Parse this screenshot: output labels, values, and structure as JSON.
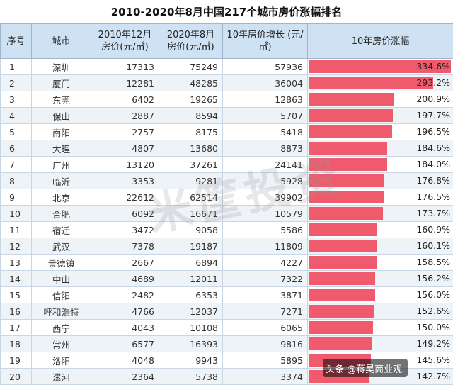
{
  "title": "2010-2020年8月中国217个城市房价涨幅排名",
  "headers": {
    "rank": "序号",
    "city": "城市",
    "price2010": "2010年12月 房价(元/㎡)",
    "price2020": "2020年8月 房价(元/㎡)",
    "growth": "10年房价增长 (元/㎡)",
    "rise": "10年房价涨幅"
  },
  "rows": [
    {
      "rank": "1",
      "city": "深圳",
      "p2010": "17313",
      "p2020": "75249",
      "growth": "57936",
      "rise": "334.6%",
      "rise_value": 334.6
    },
    {
      "rank": "2",
      "city": "厦门",
      "p2010": "12281",
      "p2020": "48285",
      "growth": "36004",
      "rise": "293.2%",
      "rise_value": 293.2
    },
    {
      "rank": "3",
      "city": "东莞",
      "p2010": "6402",
      "p2020": "19265",
      "growth": "12863",
      "rise": "200.9%",
      "rise_value": 200.9
    },
    {
      "rank": "4",
      "city": "保山",
      "p2010": "2887",
      "p2020": "8594",
      "growth": "5707",
      "rise": "197.7%",
      "rise_value": 197.7
    },
    {
      "rank": "5",
      "city": "南阳",
      "p2010": "2757",
      "p2020": "8175",
      "growth": "5418",
      "rise": "196.5%",
      "rise_value": 196.5
    },
    {
      "rank": "6",
      "city": "大理",
      "p2010": "4807",
      "p2020": "13680",
      "growth": "8873",
      "rise": "184.6%",
      "rise_value": 184.6
    },
    {
      "rank": "7",
      "city": "广州",
      "p2010": "13120",
      "p2020": "37261",
      "growth": "24141",
      "rise": "184.0%",
      "rise_value": 184.0
    },
    {
      "rank": "8",
      "city": "临沂",
      "p2010": "3353",
      "p2020": "9281",
      "growth": "5928",
      "rise": "176.8%",
      "rise_value": 176.8
    },
    {
      "rank": "9",
      "city": "北京",
      "p2010": "22612",
      "p2020": "62514",
      "growth": "39902",
      "rise": "176.5%",
      "rise_value": 176.5
    },
    {
      "rank": "10",
      "city": "合肥",
      "p2010": "6092",
      "p2020": "16671",
      "growth": "10579",
      "rise": "173.7%",
      "rise_value": 173.7
    },
    {
      "rank": "11",
      "city": "宿迁",
      "p2010": "3472",
      "p2020": "9058",
      "growth": "5586",
      "rise": "160.9%",
      "rise_value": 160.9
    },
    {
      "rank": "12",
      "city": "武汉",
      "p2010": "7378",
      "p2020": "19187",
      "growth": "11809",
      "rise": "160.1%",
      "rise_value": 160.1
    },
    {
      "rank": "13",
      "city": "景德镇",
      "p2010": "2667",
      "p2020": "6894",
      "growth": "4227",
      "rise": "158.5%",
      "rise_value": 158.5
    },
    {
      "rank": "14",
      "city": "中山",
      "p2010": "4689",
      "p2020": "12011",
      "growth": "7322",
      "rise": "156.2%",
      "rise_value": 156.2
    },
    {
      "rank": "15",
      "city": "信阳",
      "p2010": "2482",
      "p2020": "6353",
      "growth": "3871",
      "rise": "156.0%",
      "rise_value": 156.0
    },
    {
      "rank": "16",
      "city": "呼和浩特",
      "p2010": "4766",
      "p2020": "12037",
      "growth": "7271",
      "rise": "152.6%",
      "rise_value": 152.6
    },
    {
      "rank": "17",
      "city": "西宁",
      "p2010": "4043",
      "p2020": "10108",
      "growth": "6065",
      "rise": "150.0%",
      "rise_value": 150.0
    },
    {
      "rank": "18",
      "city": "常州",
      "p2010": "6577",
      "p2020": "16393",
      "growth": "9816",
      "rise": "149.2%",
      "rise_value": 149.2
    },
    {
      "rank": "19",
      "city": "洛阳",
      "p2010": "4048",
      "p2020": "9943",
      "growth": "5895",
      "rise": "145.6%",
      "rise_value": 145.6
    },
    {
      "rank": "20",
      "city": "漯河",
      "p2010": "2364",
      "p2020": "5738",
      "growth": "3374",
      "rise": "142.7%",
      "rise_value": 142.7
    }
  ],
  "rise_max": 334.6,
  "watermark": "米筐投资",
  "source_mark": "头条 @蒋昊商业观",
  "colors": {
    "bar": "#ef5b6d",
    "header_bg": "#cfe2f3",
    "row_alt": "#eef3f8"
  }
}
